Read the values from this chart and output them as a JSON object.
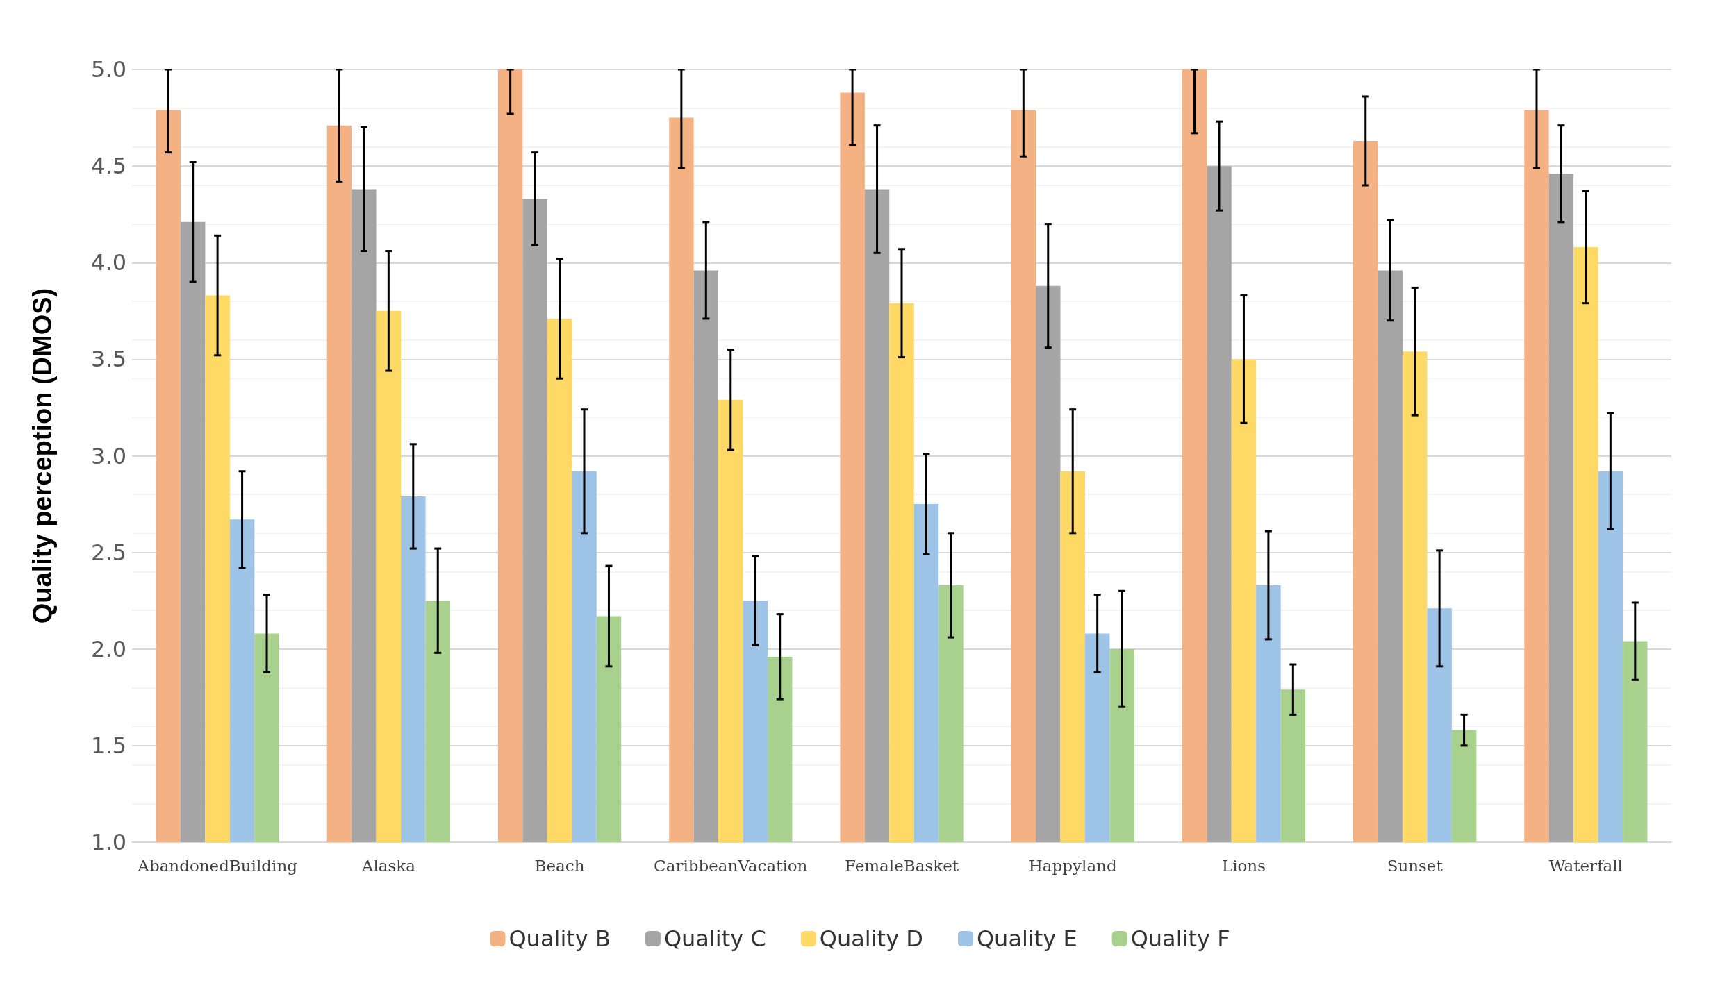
{
  "chart_data": {
    "type": "bar",
    "ylabel": "Quality perception (DMOS)",
    "categories": [
      "AbandonedBuilding",
      "Alaska",
      "Beach",
      "CaribbeanVacation",
      "FemaleBasket",
      "Happyland",
      "Lions",
      "Sunset",
      "Waterfall"
    ],
    "series": [
      {
        "name": "Quality B",
        "color": "#f4b183",
        "values": [
          4.79,
          4.71,
          5.0,
          4.75,
          4.88,
          4.79,
          5.0,
          4.63,
          4.79
        ],
        "errors": [
          [
            4.57,
            5.0
          ],
          0.29,
          [
            4.77,
            5.0
          ],
          [
            4.49,
            5.0
          ],
          [
            4.61,
            5.0
          ],
          [
            4.55,
            5.0
          ],
          [
            4.67,
            5.0
          ],
          0.23,
          [
            4.49,
            5.0
          ]
        ]
      },
      {
        "name": "Quality C",
        "color": "#a5a5a5",
        "values": [
          4.21,
          4.38,
          4.33,
          3.96,
          4.38,
          3.88,
          4.5,
          3.96,
          4.46
        ],
        "errors": [
          0.31,
          0.32,
          0.24,
          0.25,
          0.33,
          0.32,
          0.23,
          0.26,
          0.25
        ]
      },
      {
        "name": "Quality D",
        "color": "#ffd966",
        "values": [
          3.83,
          3.75,
          3.71,
          3.29,
          3.79,
          2.92,
          3.5,
          3.54,
          4.08
        ],
        "errors": [
          0.31,
          0.31,
          0.31,
          0.26,
          0.28,
          0.32,
          0.33,
          0.33,
          0.29
        ]
      },
      {
        "name": "Quality E",
        "color": "#9dc3e6",
        "values": [
          2.67,
          2.79,
          2.92,
          2.25,
          2.75,
          2.08,
          2.33,
          2.21,
          2.92
        ],
        "errors": [
          0.25,
          0.27,
          0.32,
          0.23,
          0.26,
          0.2,
          0.28,
          0.3,
          0.3
        ]
      },
      {
        "name": "Quality F",
        "color": "#a9d18e",
        "values": [
          2.08,
          2.25,
          2.17,
          1.96,
          2.33,
          2.0,
          1.79,
          1.58,
          2.04
        ],
        "errors": [
          0.2,
          0.27,
          0.26,
          0.22,
          0.27,
          0.3,
          0.13,
          0.08,
          0.2
        ]
      }
    ],
    "ylim": [
      1,
      5
    ],
    "yticks": [
      {
        "value": 1,
        "label": "1.0"
      },
      {
        "value": 1.5,
        "label": "1.5"
      },
      {
        "value": 2,
        "label": "2.0"
      },
      {
        "value": 2.5,
        "label": "2.5"
      },
      {
        "value": 3,
        "label": "3.0"
      },
      {
        "value": 3.5,
        "label": "3.5"
      },
      {
        "value": 4,
        "label": "4.0"
      },
      {
        "value": 4.5,
        "label": "4.5"
      },
      {
        "value": 5,
        "label": "5.0"
      }
    ],
    "grid": "y",
    "legend": "bottom"
  }
}
